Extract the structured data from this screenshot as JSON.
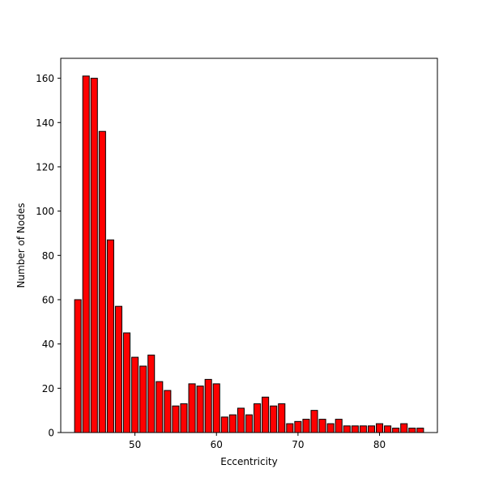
{
  "chart_data": {
    "type": "bar",
    "title": "",
    "xlabel": "Eccentricity",
    "ylabel": "Number of Nodes",
    "x": [
      43,
      44,
      45,
      46,
      47,
      48,
      49,
      50,
      51,
      52,
      53,
      54,
      55,
      56,
      57,
      58,
      59,
      60,
      61,
      62,
      63,
      64,
      65,
      66,
      67,
      68,
      69,
      70,
      71,
      72,
      73,
      74,
      75,
      76,
      77,
      78,
      79,
      80,
      81,
      82,
      83,
      84,
      85
    ],
    "values": [
      60,
      161,
      160,
      136,
      87,
      57,
      45,
      34,
      30,
      35,
      23,
      19,
      12,
      13,
      22,
      21,
      24,
      22,
      7,
      8,
      11,
      8,
      13,
      16,
      12,
      13,
      4,
      5,
      6,
      10,
      6,
      4,
      6,
      3,
      3,
      3,
      3,
      4,
      3,
      2,
      4,
      2,
      2
    ],
    "xlim": [
      40.9,
      87.1
    ],
    "ylim": [
      0,
      169
    ],
    "xticks": [
      50,
      60,
      70,
      80
    ],
    "yticks": [
      0,
      20,
      40,
      60,
      80,
      100,
      120,
      140,
      160
    ],
    "bar_color": "#ff0000",
    "edge_color": "#000000",
    "grid": false,
    "legend": "none"
  }
}
